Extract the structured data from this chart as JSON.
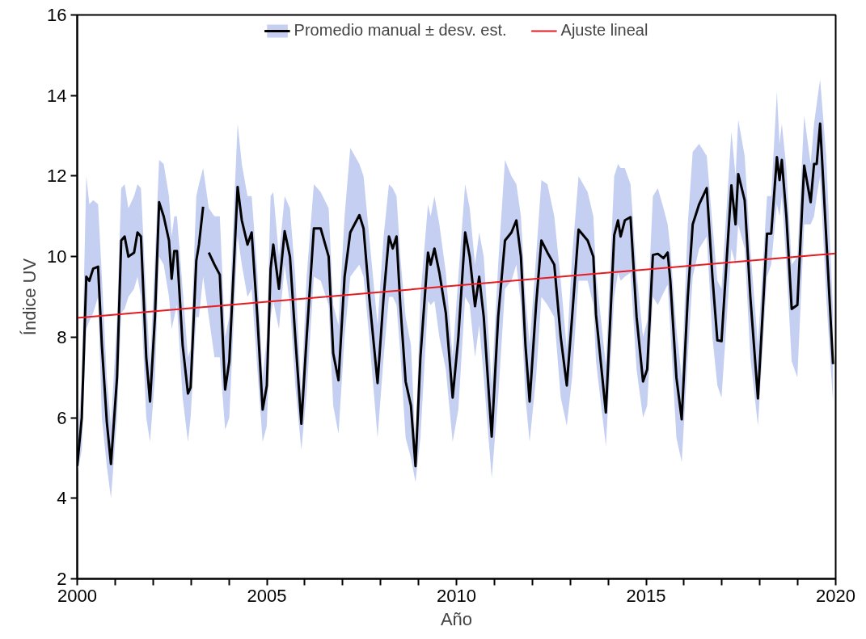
{
  "chart_data": {
    "type": "line",
    "xlabel": "Año",
    "ylabel": "Índice UV",
    "xlim": [
      2000,
      2020
    ],
    "ylim": [
      2,
      16
    ],
    "xticks": [
      2000,
      {
        "value": 2001,
        "label": null
      },
      {
        "value": 2002,
        "label": null
      },
      {
        "value": 2003,
        "label": null
      },
      {
        "value": 2004,
        "label": null
      },
      2005,
      {
        "value": 2006,
        "label": null
      },
      {
        "value": 2007,
        "label": null
      },
      {
        "value": 2008,
        "label": null
      },
      {
        "value": 2009,
        "label": null
      },
      2010,
      {
        "value": 2011,
        "label": null
      },
      {
        "value": 2012,
        "label": null
      },
      {
        "value": 2013,
        "label": null
      },
      {
        "value": 2014,
        "label": null
      },
      2015,
      {
        "value": 2016,
        "label": null
      },
      {
        "value": 2017,
        "label": null
      },
      {
        "value": 2018,
        "label": null
      },
      {
        "value": 2019,
        "label": null
      },
      2020
    ],
    "yticks": [
      2,
      4,
      6,
      8,
      10,
      12,
      14,
      16
    ],
    "grid": false,
    "legend": "top",
    "marker": "none",
    "line_style": "solid",
    "series": [
      {
        "name": "Promedio manual ± desv. est.",
        "color": "#000000",
        "x": [
          2000.0,
          2000.12,
          2000.24,
          2000.32,
          2000.42,
          2000.55,
          2000.65,
          2000.78,
          2000.89,
          2001.05,
          2001.16,
          2001.25,
          2001.35,
          2001.5,
          2001.59,
          2001.68,
          2001.82,
          2001.92,
          2002.05,
          2002.16,
          2002.28,
          2002.42,
          2002.49,
          2002.56,
          2002.63,
          2002.78,
          2002.92,
          2002.99,
          2003.14,
          2003.21,
          2003.32,
          2003.4,
          2003.47,
          2003.62,
          2003.76,
          2003.9,
          2004.01,
          2004.23,
          2004.34,
          2004.49,
          2004.6,
          2004.75,
          2004.89,
          2005.0,
          2005.1,
          2005.17,
          2005.32,
          2005.47,
          2005.61,
          2005.75,
          2005.91,
          2006.05,
          2006.24,
          2006.42,
          2006.63,
          2006.75,
          2006.89,
          2007.05,
          2007.2,
          2007.44,
          2007.55,
          2007.7,
          2007.92,
          2008.08,
          2008.22,
          2008.32,
          2008.42,
          2008.52,
          2008.66,
          2008.8,
          2008.92,
          2009.05,
          2009.25,
          2009.32,
          2009.42,
          2009.55,
          2009.72,
          2009.9,
          2010.05,
          2010.23,
          2010.35,
          2010.49,
          2010.6,
          2010.72,
          2010.93,
          2011.1,
          2011.28,
          2011.45,
          2011.58,
          2011.7,
          2011.82,
          2011.93,
          2012.1,
          2012.24,
          2012.4,
          2012.58,
          2012.75,
          2012.91,
          2013.05,
          2013.22,
          2013.46,
          2013.61,
          2013.68,
          2013.94,
          2014.16,
          2014.26,
          2014.33,
          2014.44,
          2014.59,
          2014.75,
          2014.92,
          2015.03,
          2015.18,
          2015.31,
          2015.46,
          2015.57,
          2015.64,
          2015.8,
          2015.94,
          2016.1,
          2016.23,
          2016.4,
          2016.6,
          2016.75,
          2016.88,
          2016.99,
          2017.25,
          2017.36,
          2017.43,
          2017.6,
          2017.75,
          2017.95,
          2018.19,
          2018.3,
          2018.45,
          2018.52,
          2018.58,
          2018.7,
          2018.84,
          2018.99,
          2019.17,
          2019.34,
          2019.43,
          2019.5,
          2019.59,
          2019.75,
          2019.93
        ],
        "values": [
          4.8,
          6.0,
          9.5,
          9.4,
          9.7,
          9.75,
          7.8,
          5.9,
          4.85,
          7.0,
          10.4,
          10.5,
          10.0,
          10.1,
          10.6,
          10.5,
          7.5,
          6.4,
          8.5,
          11.35,
          11.0,
          10.4,
          9.45,
          10.14,
          10.14,
          7.8,
          6.6,
          6.75,
          9.9,
          10.3,
          11.24,
          null,
          10.1,
          9.8,
          9.55,
          6.7,
          7.4,
          11.73,
          10.9,
          10.3,
          10.6,
          8.5,
          6.2,
          6.8,
          9.7,
          10.3,
          9.2,
          10.63,
          10.0,
          8.0,
          5.85,
          8.0,
          10.7,
          10.7,
          10.0,
          7.6,
          6.93,
          9.5,
          10.6,
          11.03,
          10.7,
          9.0,
          6.86,
          9.0,
          10.5,
          10.2,
          10.5,
          8.8,
          6.9,
          6.3,
          4.8,
          7.5,
          10.1,
          9.8,
          10.2,
          9.6,
          8.6,
          6.5,
          8.0,
          10.6,
          10.0,
          8.77,
          9.5,
          8.5,
          5.53,
          8.5,
          10.4,
          10.6,
          10.9,
          10.0,
          7.8,
          6.4,
          8.8,
          10.4,
          10.1,
          9.8,
          8.0,
          6.8,
          8.5,
          10.67,
          10.4,
          10.0,
          8.56,
          6.13,
          10.53,
          10.9,
          10.5,
          10.9,
          10.98,
          8.5,
          6.9,
          7.2,
          10.04,
          10.07,
          9.96,
          10.1,
          9.4,
          7.0,
          5.96,
          9.0,
          10.8,
          11.3,
          11.7,
          9.5,
          7.92,
          7.9,
          11.77,
          10.8,
          12.05,
          11.4,
          9.0,
          6.48,
          10.57,
          10.57,
          12.47,
          11.9,
          12.4,
          11.0,
          8.7,
          8.8,
          12.26,
          11.35,
          12.3,
          12.3,
          13.3,
          10.5,
          7.33
        ],
        "lower": [
          4.6,
          5.2,
          8.2,
          8.4,
          8.6,
          9.0,
          6.0,
          4.8,
          4.0,
          6.0,
          8.6,
          8.7,
          9.0,
          9.2,
          9.5,
          9.0,
          6.0,
          5.4,
          7.0,
          10.0,
          9.8,
          9.0,
          8.2,
          8.5,
          8.8,
          6.5,
          5.4,
          6.0,
          8.5,
          8.5,
          9.5,
          null,
          8.5,
          7.5,
          7.5,
          5.7,
          6.0,
          10.5,
          9.8,
          9.0,
          9.2,
          7.2,
          5.4,
          5.8,
          8.5,
          8.9,
          8.2,
          9.8,
          8.8,
          6.8,
          5.2,
          6.6,
          9.5,
          9.4,
          8.8,
          6.3,
          5.6,
          8.0,
          9.5,
          9.8,
          9.5,
          8.0,
          5.5,
          7.5,
          9.0,
          9.0,
          8.8,
          7.6,
          5.5,
          5.0,
          4.4,
          5.5,
          8.9,
          8.8,
          8.9,
          8.0,
          7.2,
          5.4,
          6.2,
          9.0,
          8.8,
          7.5,
          8.3,
          7.0,
          4.5,
          6.5,
          9.2,
          9.4,
          9.8,
          8.8,
          6.5,
          5.4,
          7.0,
          9.0,
          8.8,
          8.5,
          6.5,
          5.8,
          7.0,
          9.4,
          9.4,
          8.8,
          7.4,
          5.3,
          9.0,
          9.6,
          9.4,
          9.5,
          9.6,
          7.2,
          6.0,
          6.3,
          9.0,
          8.8,
          9.1,
          9.3,
          8.2,
          5.5,
          4.9,
          7.5,
          9.5,
          10.2,
          10.5,
          8.0,
          6.8,
          6.5,
          10.2,
          9.8,
          10.8,
          10.2,
          7.5,
          5.8,
          9.5,
          9.8,
          11.3,
          11.0,
          11.5,
          9.8,
          7.4,
          7.0,
          10.8,
          10.8,
          11.0,
          11.5,
          12.0,
          9.0,
          6.4
        ],
        "upper": [
          5.2,
          7.0,
          12.0,
          11.3,
          11.4,
          11.3,
          9.5,
          7.0,
          5.8,
          8.5,
          11.7,
          11.8,
          11.2,
          11.5,
          11.8,
          11.7,
          9.0,
          7.3,
          10.0,
          12.4,
          12.3,
          11.5,
          10.5,
          11.0,
          11.0,
          9.2,
          7.5,
          7.7,
          11.5,
          11.8,
          12.2,
          null,
          11.2,
          11.0,
          11.0,
          8.0,
          8.5,
          13.3,
          12.3,
          11.5,
          11.5,
          9.6,
          7.0,
          8.0,
          11.5,
          11.6,
          10.0,
          11.5,
          11.2,
          9.5,
          6.6,
          9.5,
          11.8,
          11.6,
          11.2,
          8.8,
          8.3,
          11.0,
          12.7,
          12.3,
          12.0,
          10.5,
          8.3,
          10.5,
          11.8,
          11.7,
          11.5,
          10.0,
          8.5,
          7.8,
          5.3,
          9.0,
          11.3,
          11.0,
          11.5,
          10.8,
          9.6,
          7.5,
          9.5,
          11.8,
          11.2,
          9.8,
          10.6,
          10.0,
          6.8,
          9.8,
          12.4,
          12.0,
          11.8,
          11.0,
          9.0,
          7.8,
          10.0,
          11.9,
          11.8,
          11.0,
          9.4,
          7.7,
          10.0,
          12.0,
          11.6,
          11.0,
          9.6,
          7.3,
          12.0,
          12.3,
          12.2,
          12.2,
          11.8,
          9.6,
          8.0,
          8.4,
          11.5,
          11.7,
          11.2,
          10.8,
          10.2,
          8.2,
          7.0,
          10.8,
          12.6,
          12.8,
          12.5,
          10.8,
          9.4,
          9.2,
          13.1,
          12.0,
          13.4,
          12.5,
          10.2,
          7.8,
          11.5,
          11.5,
          14.1,
          12.8,
          13.3,
          12.2,
          9.8,
          10.0,
          13.5,
          12.3,
          13.3,
          13.8,
          14.4,
          12.5,
          8.6
        ]
      },
      {
        "name": "Ajuste lineal",
        "color": "#e8191f",
        "x": [
          2000,
          2020
        ],
        "values": [
          8.48,
          10.08
        ]
      }
    ]
  }
}
